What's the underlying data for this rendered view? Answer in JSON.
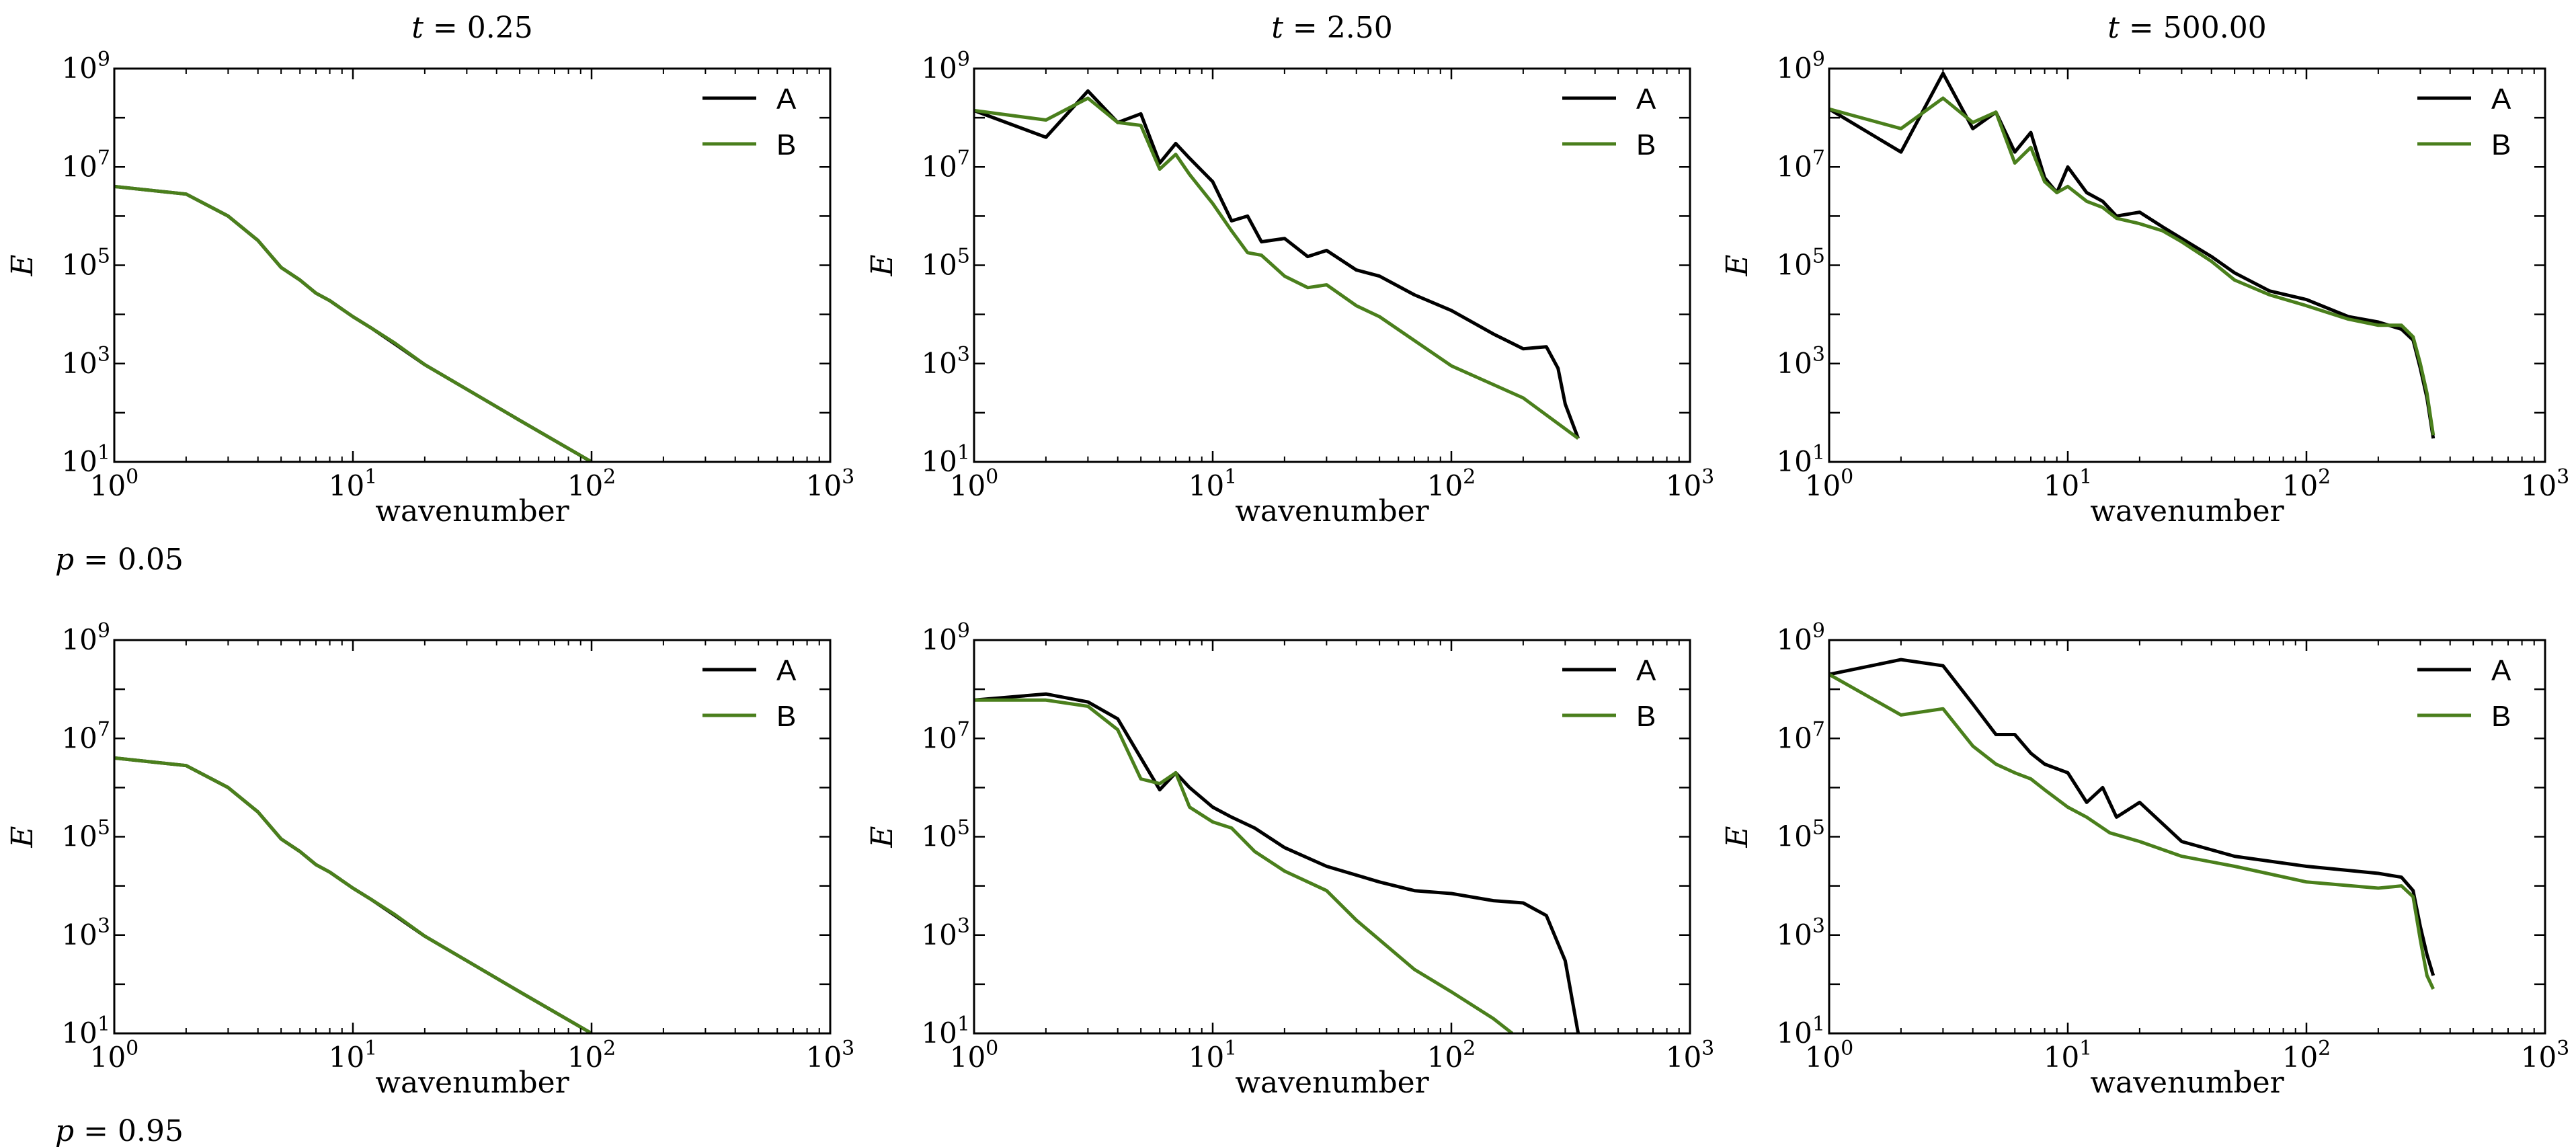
{
  "figure": {
    "column_titles": [
      "t = 0.25",
      "t = 2.50",
      "t = 500.00"
    ],
    "row_labels": [
      "p = 0.05",
      "p = 0.95"
    ]
  },
  "chart_data": [
    {
      "type": "line",
      "title": "t = 0.25",
      "row_label": "",
      "xlabel": "wavenumber",
      "ylabel": "E",
      "xscale": "log",
      "yscale": "log",
      "xlim": [
        1,
        1000
      ],
      "ylim": [
        10,
        1000000000
      ],
      "xticks": [
        1,
        10,
        100,
        1000
      ],
      "yticks": [
        10,
        1000,
        100000,
        10000000,
        1000000000
      ],
      "legend": "top-right",
      "series": [
        {
          "name": "A",
          "color": "#000000",
          "x": [
            1,
            2,
            3,
            4,
            5,
            6,
            7,
            8,
            10,
            12,
            15,
            20,
            30,
            50,
            100
          ],
          "y": [
            4000000,
            2800000,
            1000000,
            320000,
            90000,
            50000,
            27000,
            19000,
            9000,
            5200,
            2500,
            950,
            300,
            70,
            10
          ]
        },
        {
          "name": "B",
          "color": "#4a7f1c",
          "x": [
            1,
            2,
            3,
            4,
            5,
            6,
            7,
            8,
            10,
            12,
            15,
            20,
            30,
            50,
            100
          ],
          "y": [
            4000000,
            2800000,
            1000000,
            320000,
            90000,
            50000,
            27000,
            19000,
            9000,
            5200,
            2600,
            950,
            300,
            70,
            10
          ]
        }
      ]
    },
    {
      "type": "line",
      "title": "t = 2.50",
      "row_label": "",
      "xlabel": "wavenumber",
      "ylabel": "E",
      "xscale": "log",
      "yscale": "log",
      "xlim": [
        1,
        1000
      ],
      "ylim": [
        10,
        1000000000
      ],
      "xticks": [
        1,
        10,
        100,
        1000
      ],
      "yticks": [
        10,
        1000,
        100000,
        10000000,
        1000000000
      ],
      "legend": "top-right",
      "series": [
        {
          "name": "A",
          "color": "#000000",
          "x": [
            1,
            2,
            3,
            4,
            5,
            6,
            7,
            8,
            10,
            12,
            14,
            16,
            20,
            25,
            30,
            40,
            50,
            70,
            100,
            150,
            200,
            250,
            280,
            300,
            340
          ],
          "y": [
            140000000,
            40000000,
            350000000,
            80000000,
            120000000,
            12000000,
            30000000,
            15000000,
            5000000,
            800000,
            1000000,
            300000,
            350000,
            150000,
            200000,
            80000,
            60000,
            25000,
            12000,
            4000,
            2000,
            2200,
            800,
            150,
            30
          ]
        },
        {
          "name": "B",
          "color": "#4a7f1c",
          "x": [
            1,
            2,
            3,
            4,
            5,
            6,
            7,
            8,
            10,
            12,
            14,
            16,
            20,
            25,
            30,
            40,
            50,
            100,
            200,
            340
          ],
          "y": [
            140000000,
            90000000,
            250000000,
            80000000,
            70000000,
            9000000,
            18000000,
            7000000,
            1800000,
            500000,
            180000,
            160000,
            60000,
            35000,
            40000,
            15000,
            9000,
            900,
            200,
            30
          ]
        }
      ]
    },
    {
      "type": "line",
      "title": "t = 500.00",
      "row_label": "p = 0.05",
      "xlabel": "wavenumber",
      "ylabel": "E",
      "xscale": "log",
      "yscale": "log",
      "xlim": [
        1,
        1000
      ],
      "ylim": [
        10,
        1000000000
      ],
      "xticks": [
        1,
        10,
        100,
        1000
      ],
      "yticks": [
        10,
        1000,
        100000,
        10000000,
        1000000000
      ],
      "legend": "top-right",
      "series": [
        {
          "name": "A",
          "color": "#000000",
          "x": [
            1,
            2,
            3,
            4,
            5,
            6,
            7,
            8,
            9,
            10,
            12,
            14,
            16,
            20,
            25,
            30,
            40,
            50,
            70,
            100,
            150,
            200,
            250,
            280,
            300,
            320,
            340
          ],
          "y": [
            150000000,
            20000000,
            800000000,
            60000000,
            130000000,
            20000000,
            50000000,
            6000000,
            3000000,
            10000000,
            3000000,
            2000000,
            1000000,
            1200000,
            600000,
            350000,
            150000,
            70000,
            30000,
            20000,
            9000,
            7000,
            5000,
            3000,
            800,
            200,
            30
          ]
        },
        {
          "name": "B",
          "color": "#4a7f1c",
          "x": [
            1,
            2,
            3,
            4,
            5,
            6,
            7,
            8,
            9,
            10,
            12,
            14,
            16,
            20,
            25,
            30,
            40,
            50,
            70,
            100,
            150,
            200,
            250,
            280,
            300,
            320,
            340
          ],
          "y": [
            150000000,
            60000000,
            250000000,
            80000000,
            130000000,
            12000000,
            25000000,
            5000000,
            3000000,
            4000000,
            2000000,
            1500000,
            900000,
            700000,
            500000,
            300000,
            120000,
            50000,
            25000,
            15000,
            8000,
            6000,
            6000,
            3500,
            1000,
            250,
            35
          ]
        }
      ]
    },
    {
      "type": "line",
      "title": "",
      "row_label": "",
      "xlabel": "wavenumber",
      "ylabel": "E",
      "xscale": "log",
      "yscale": "log",
      "xlim": [
        1,
        1000
      ],
      "ylim": [
        10,
        1000000000
      ],
      "xticks": [
        1,
        10,
        100,
        1000
      ],
      "yticks": [
        10,
        1000,
        100000,
        10000000,
        1000000000
      ],
      "legend": "top-right",
      "series": [
        {
          "name": "A",
          "color": "#000000",
          "x": [
            1,
            2,
            3,
            4,
            5,
            6,
            7,
            8,
            10,
            12,
            15,
            20,
            30,
            50,
            100
          ],
          "y": [
            4000000,
            2800000,
            1000000,
            320000,
            90000,
            50000,
            27000,
            19000,
            9000,
            5200,
            2500,
            950,
            300,
            70,
            10
          ]
        },
        {
          "name": "B",
          "color": "#4a7f1c",
          "x": [
            1,
            2,
            3,
            4,
            5,
            6,
            7,
            8,
            10,
            12,
            15,
            20,
            30,
            50,
            100
          ],
          "y": [
            4000000,
            2800000,
            1000000,
            320000,
            90000,
            50000,
            27000,
            19000,
            9000,
            5200,
            2600,
            950,
            300,
            70,
            10
          ]
        }
      ]
    },
    {
      "type": "line",
      "title": "",
      "row_label": "",
      "xlabel": "wavenumber",
      "ylabel": "E",
      "xscale": "log",
      "yscale": "log",
      "xlim": [
        1,
        1000
      ],
      "ylim": [
        10,
        1000000000
      ],
      "xticks": [
        1,
        10,
        100,
        1000
      ],
      "yticks": [
        10,
        1000,
        100000,
        10000000,
        1000000000
      ],
      "legend": "top-right",
      "series": [
        {
          "name": "A",
          "color": "#000000",
          "x": [
            1,
            2,
            3,
            4,
            5,
            6,
            7,
            8,
            10,
            12,
            15,
            20,
            30,
            50,
            70,
            100,
            150,
            200,
            250,
            300,
            340
          ],
          "y": [
            60000000,
            80000000,
            55000000,
            25000000,
            4000000,
            900000,
            2000000,
            1000000,
            400000,
            250000,
            150000,
            60000,
            25000,
            12000,
            8000,
            7000,
            5000,
            4500,
            2500,
            300,
            10
          ]
        },
        {
          "name": "B",
          "color": "#4a7f1c",
          "x": [
            1,
            2,
            3,
            4,
            5,
            6,
            7,
            8,
            10,
            12,
            15,
            20,
            30,
            40,
            50,
            70,
            100,
            150,
            180
          ],
          "y": [
            60000000,
            60000000,
            45000000,
            15000000,
            1500000,
            1200000,
            2000000,
            400000,
            200000,
            150000,
            50000,
            20000,
            8000,
            2000,
            800,
            200,
            70,
            20,
            10
          ]
        }
      ]
    },
    {
      "type": "line",
      "title": "",
      "row_label": "p = 0.95",
      "xlabel": "wavenumber",
      "ylabel": "E",
      "xscale": "log",
      "yscale": "log",
      "xlim": [
        1,
        1000
      ],
      "ylim": [
        10,
        1000000000
      ],
      "xticks": [
        1,
        10,
        100,
        1000
      ],
      "yticks": [
        10,
        1000,
        100000,
        10000000,
        1000000000
      ],
      "legend": "top-right",
      "series": [
        {
          "name": "A",
          "color": "#000000",
          "x": [
            1,
            2,
            3,
            4,
            5,
            6,
            7,
            8,
            10,
            12,
            14,
            16,
            20,
            30,
            50,
            100,
            200,
            250,
            280,
            300,
            320,
            340
          ],
          "y": [
            200000000,
            400000000,
            300000000,
            50000000,
            12000000,
            12000000,
            5000000,
            3000000,
            2000000,
            500000,
            1000000,
            250000,
            500000,
            80000,
            40000,
            25000,
            18000,
            15000,
            8000,
            1500,
            400,
            150
          ]
        },
        {
          "name": "B",
          "color": "#4a7f1c",
          "x": [
            1,
            2,
            3,
            4,
            5,
            6,
            7,
            8,
            10,
            12,
            15,
            20,
            30,
            50,
            100,
            200,
            250,
            280,
            300,
            320,
            340
          ],
          "y": [
            200000000,
            30000000,
            40000000,
            7000000,
            3000000,
            2000000,
            1500000,
            900000,
            400000,
            250000,
            120000,
            80000,
            40000,
            25000,
            12000,
            9000,
            10000,
            6000,
            800,
            150,
            80
          ]
        }
      ]
    }
  ]
}
